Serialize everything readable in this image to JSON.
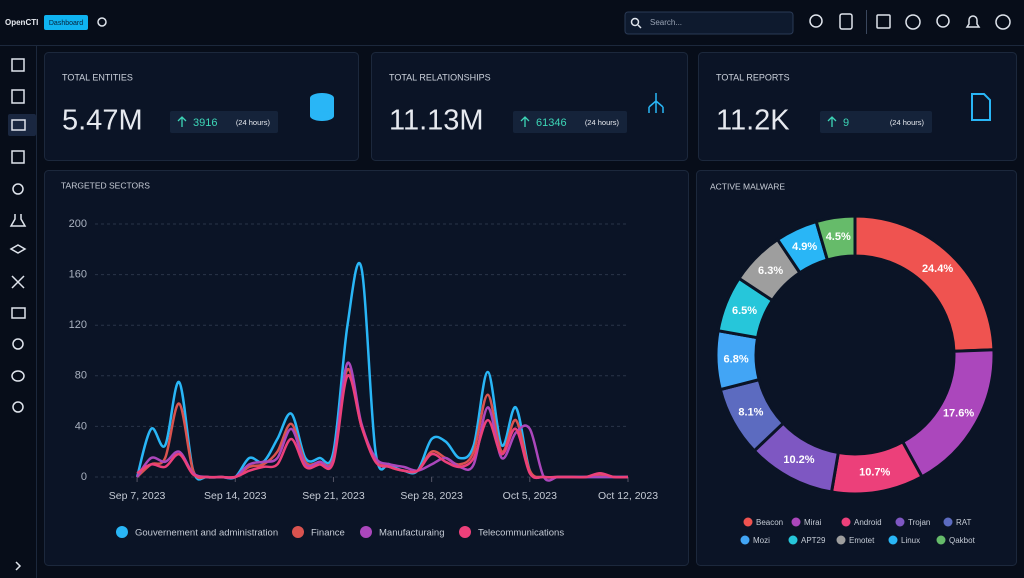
{
  "header": {
    "brand": "OpenCTI",
    "badge": "Dashboard",
    "search_placeholder": "Search..."
  },
  "cards": [
    {
      "title": "TOTAL ENTITIES",
      "value": "5.47M",
      "delta": "3916",
      "period": "(24 hours)"
    },
    {
      "title": "TOTAL RELATIONSHIPS",
      "value": "11.13M",
      "delta": "61346",
      "period": "(24 hours)"
    },
    {
      "title": "TOTAL REPORTS",
      "value": "11.2K",
      "delta": "9",
      "period": "(24 hours)"
    }
  ],
  "chart_data": [
    {
      "type": "line",
      "title": "TARGETED SECTORS",
      "x": [
        "2023-09-07",
        "2023-09-08",
        "2023-09-09",
        "2023-09-10",
        "2023-09-11",
        "2023-09-12",
        "2023-09-13",
        "2023-09-14",
        "2023-09-15",
        "2023-09-16",
        "2023-09-17",
        "2023-09-18",
        "2023-09-19",
        "2023-09-20",
        "2023-09-21",
        "2023-09-22",
        "2023-09-23",
        "2023-09-24",
        "2023-09-25",
        "2023-09-26",
        "2023-09-27",
        "2023-09-28",
        "2023-09-29",
        "2023-09-30",
        "2023-10-01",
        "2023-10-02",
        "2023-10-03",
        "2023-10-04",
        "2023-10-05",
        "2023-10-06",
        "2023-10-07",
        "2023-10-08",
        "2023-10-09",
        "2023-10-10",
        "2023-10-11",
        "2023-10-12"
      ],
      "xlim": [
        "2023-09-04",
        "2023-10-12"
      ],
      "xticks": [
        {
          "value": "2023-09-07",
          "label": "Sep 7, 2023"
        },
        {
          "value": "2023-09-14",
          "label": "Sep 14, 2023"
        },
        {
          "value": "2023-09-21",
          "label": "Sep 21, 2023"
        },
        {
          "value": "2023-09-28",
          "label": "Sep 28, 2023"
        },
        {
          "value": "2023-10-05",
          "label": "Oct 5, 2023"
        },
        {
          "value": "2023-10-12",
          "label": "Oct 12, 2023"
        }
      ],
      "ylim": [
        0,
        200
      ],
      "yticks": [
        0,
        40,
        80,
        120,
        160,
        200
      ],
      "grid": true,
      "series": [
        {
          "name": "Gouvernement and administration",
          "color": "#29b6f6",
          "values": [
            0,
            38,
            25,
            75,
            5,
            0,
            0,
            0,
            15,
            12,
            30,
            50,
            15,
            15,
            20,
            120,
            165,
            20,
            10,
            5,
            5,
            30,
            28,
            15,
            25,
            83,
            25,
            55,
            5,
            0,
            0,
            0,
            0,
            0,
            0,
            0
          ]
        },
        {
          "name": "Finance",
          "color": "#d9534f",
          "values": [
            0,
            10,
            15,
            58,
            5,
            0,
            0,
            0,
            8,
            10,
            20,
            42,
            12,
            12,
            15,
            85,
            40,
            15,
            8,
            5,
            5,
            20,
            15,
            10,
            20,
            65,
            20,
            45,
            5,
            0,
            0,
            0,
            0,
            2,
            0,
            0
          ]
        },
        {
          "name": "Manufacturaing",
          "color": "#ab47bc",
          "values": [
            0,
            15,
            12,
            20,
            3,
            0,
            0,
            0,
            10,
            12,
            15,
            38,
            10,
            12,
            14,
            90,
            42,
            15,
            10,
            8,
            5,
            10,
            15,
            8,
            10,
            55,
            15,
            35,
            38,
            0,
            0,
            0,
            0,
            0,
            0,
            0
          ]
        },
        {
          "name": "Telecommunications",
          "color": "#ec407a",
          "values": [
            3,
            10,
            8,
            18,
            2,
            0,
            0,
            0,
            5,
            8,
            10,
            30,
            8,
            10,
            12,
            80,
            40,
            12,
            8,
            5,
            5,
            18,
            12,
            8,
            15,
            45,
            18,
            38,
            3,
            0,
            0,
            0,
            0,
            3,
            0,
            0
          ]
        }
      ]
    },
    {
      "type": "pie",
      "title": "ACTIVE MALWARE",
      "categories": [
        "Beacon",
        "Mirai",
        "Android",
        "Trojan",
        "RAT",
        "Mozi",
        "APT29",
        "Emotet",
        "Linux",
        "Qakbot"
      ],
      "values": [
        24.4,
        17.6,
        10.7,
        10.2,
        8.1,
        6.8,
        6.5,
        6.3,
        4.9,
        4.5
      ],
      "value_labels": [
        "24.4%",
        "17.6%",
        "10.7%",
        "10.2%",
        "8.1%",
        "6.8%",
        "6.5%",
        "6.3%",
        "4.9%",
        "4.5%"
      ],
      "colors": [
        "#ef5350",
        "#ab47bc",
        "#ec407a",
        "#7e57c2",
        "#5c6bc0",
        "#42a5f5",
        "#26c6da",
        "#9e9e9e",
        "#29b6f6",
        "#66bb6a"
      ]
    }
  ]
}
